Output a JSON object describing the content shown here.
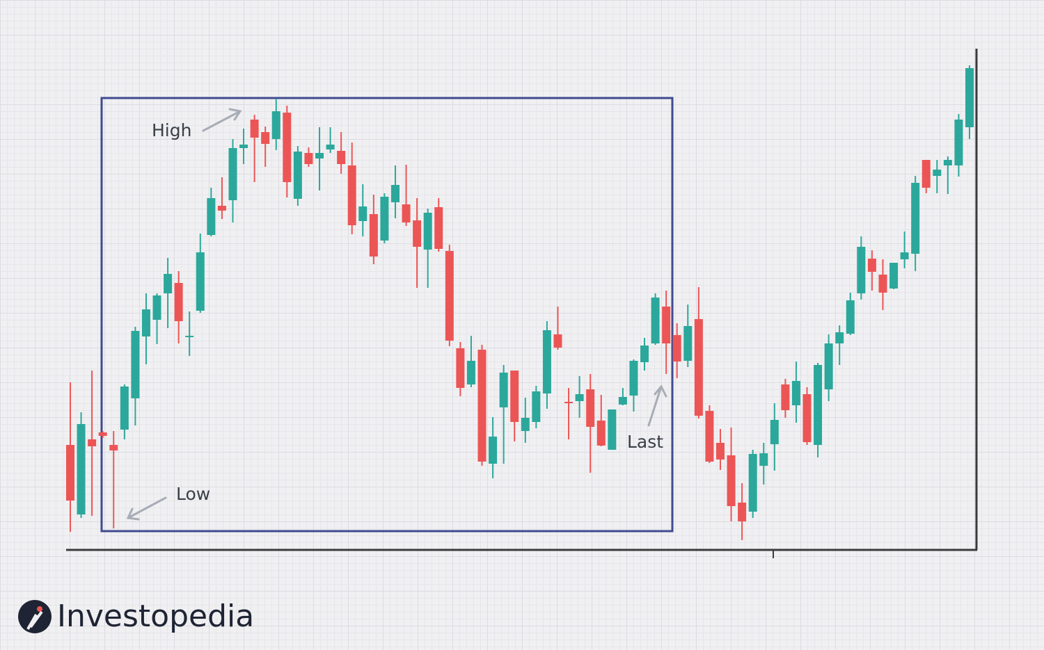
{
  "chart_data": {
    "type": "candlestick",
    "ylim": [
      0,
      720
    ],
    "up_color": "#2ba89b",
    "down_color": "#ec5555",
    "open": [
      150,
      50,
      158,
      168,
      150,
      172,
      217,
      306,
      330,
      368,
      383,
      305,
      343,
      452,
      494,
      502,
      577,
      618,
      600,
      590,
      628,
      504,
      570,
      562,
      575,
      573,
      552,
      472,
      482,
      444,
      499,
      496,
      473,
      431,
      492,
      429,
      289,
      237,
      287,
      123,
      204,
      257,
      170,
      183,
      224,
      309,
      212,
      213,
      230,
      185,
      143,
      208,
      221,
      269,
      296,
      349,
      308,
      271,
      331,
      199,
      153,
      135,
      67,
      54,
      120,
      151,
      237,
      207,
      223,
      150,
      230,
      296,
      310,
      368,
      418,
      395,
      375,
      417,
      425,
      560,
      537,
      552,
      552,
      607
    ],
    "high": [
      240,
      197,
      257,
      170,
      170,
      237,
      320,
      368,
      368,
      419,
      400,
      342,
      454,
      520,
      535,
      590,
      605,
      625,
      608,
      648,
      638,
      580,
      578,
      607,
      607,
      600,
      585,
      525,
      510,
      512,
      552,
      553,
      505,
      490,
      505,
      438,
      298,
      307,
      294,
      190,
      265,
      257,
      218,
      235,
      328,
      349,
      232,
      249,
      252,
      222,
      201,
      232,
      273,
      304,
      368,
      372,
      325,
      352,
      377,
      207,
      173,
      175,
      95,
      143,
      153,
      210,
      245,
      270,
      233,
      268,
      309,
      322,
      369,
      450,
      430,
      417,
      412,
      457,
      537,
      560,
      560,
      565,
      626,
      696
    ],
    "low": [
      25,
      45,
      48,
      160,
      30,
      158,
      178,
      266,
      295,
      318,
      296,
      278,
      340,
      450,
      475,
      470,
      554,
      528,
      550,
      574,
      506,
      494,
      550,
      516,
      570,
      540,
      453,
      450,
      410,
      440,
      476,
      465,
      376,
      376,
      428,
      292,
      220,
      233,
      120,
      102,
      123,
      155,
      153,
      174,
      202,
      287,
      158,
      189,
      110,
      148,
      143,
      207,
      198,
      257,
      294,
      252,
      246,
      262,
      188,
      124,
      114,
      40,
      13,
      45,
      93,
      113,
      189,
      182,
      150,
      132,
      213,
      265,
      308,
      359,
      372,
      344,
      374,
      404,
      400,
      512,
      512,
      511,
      536,
      590
    ],
    "close": [
      70,
      180,
      148,
      163,
      142,
      234,
      314,
      345,
      365,
      396,
      328,
      307,
      427,
      505,
      487,
      577,
      582,
      592,
      583,
      630,
      528,
      572,
      554,
      570,
      582,
      554,
      466,
      493,
      421,
      507,
      524,
      470,
      435,
      484,
      432,
      300,
      232,
      271,
      126,
      162,
      254,
      183,
      189,
      227,
      315,
      290,
      210,
      223,
      176,
      149,
      201,
      219,
      271,
      293,
      362,
      296,
      270,
      321,
      192,
      126,
      129,
      62,
      40,
      137,
      138,
      186,
      200,
      242,
      154,
      265,
      296,
      312,
      358,
      435,
      399,
      369,
      412,
      427,
      527,
      520,
      546,
      560,
      618,
      692
    ],
    "annotations": [
      {
        "text": "High",
        "index": 19
      },
      {
        "text": "Low",
        "index": 4
      },
      {
        "text": "Last",
        "index": 55
      }
    ]
  },
  "brand": "Investopedia"
}
